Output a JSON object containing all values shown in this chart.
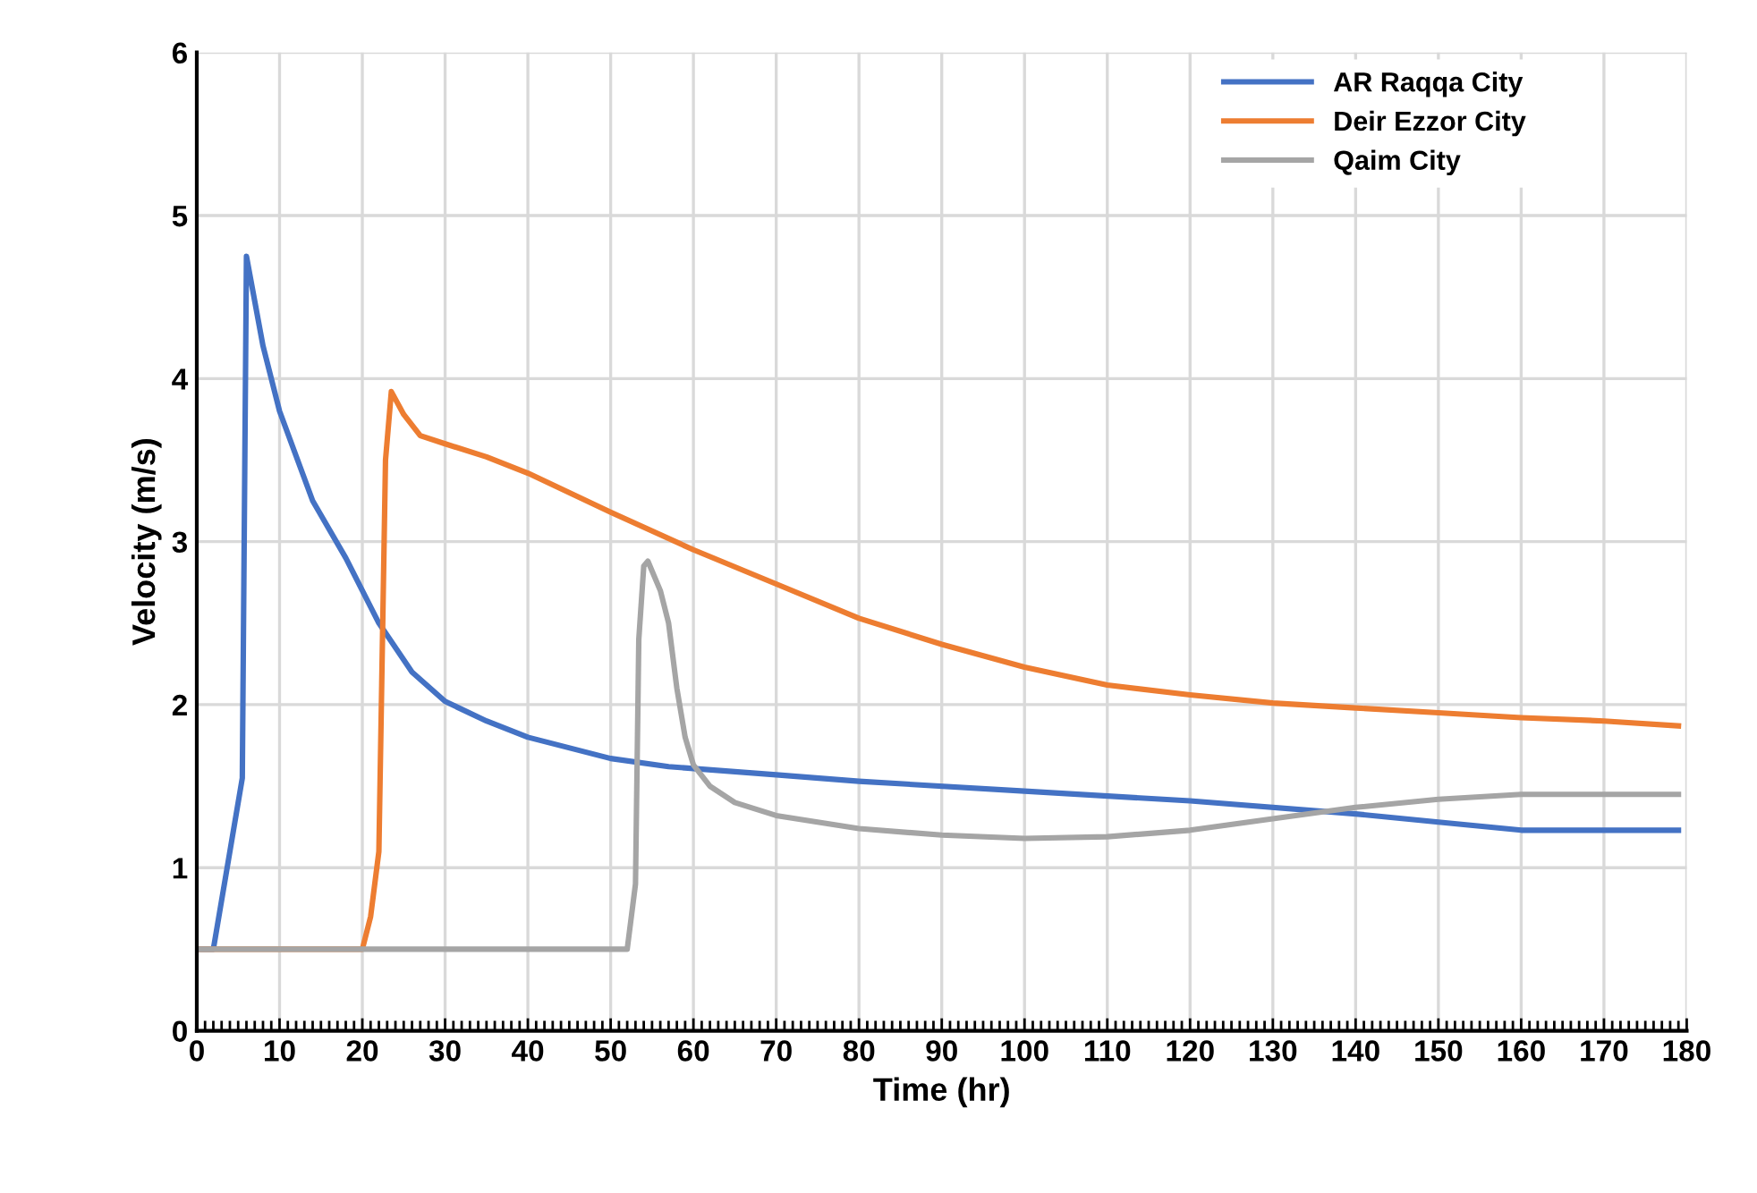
{
  "chart_data": {
    "type": "line",
    "xlabel": "Time (hr)",
    "ylabel": "Velocity (m/s)",
    "xlim": [
      0,
      180
    ],
    "xticks": [
      0,
      10,
      20,
      30,
      40,
      50,
      60,
      70,
      80,
      90,
      100,
      110,
      120,
      130,
      140,
      150,
      160,
      170,
      180
    ],
    "ylim": [
      0,
      6
    ],
    "yticks": [
      0,
      1,
      2,
      3,
      4,
      5,
      6
    ],
    "grid": true,
    "legend": "top right",
    "marker": "none",
    "line_style": "solid",
    "series": [
      {
        "name": "AR Raqqa City",
        "color": "#4472c4",
        "x": [
          0,
          2,
          5.5,
          6,
          8,
          10,
          14,
          18,
          22,
          26,
          30,
          35,
          40,
          50,
          57,
          70,
          80,
          100,
          120,
          140,
          150,
          160,
          170,
          179
        ],
        "values": [
          0.5,
          0.5,
          1.55,
          4.75,
          4.2,
          3.8,
          3.25,
          2.9,
          2.5,
          2.2,
          2.02,
          1.9,
          1.8,
          1.67,
          1.62,
          1.57,
          1.53,
          1.47,
          1.41,
          1.33,
          1.28,
          1.23,
          1.23,
          1.23
        ]
      },
      {
        "name": "Deir Ezzor City",
        "color": "#ed7d31",
        "x": [
          0,
          20,
          21,
          22,
          22.3,
          22.8,
          23.5,
          25,
          27,
          30,
          35,
          40,
          50,
          60,
          70,
          80,
          90,
          100,
          110,
          120,
          130,
          140,
          150,
          160,
          170,
          179
        ],
        "values": [
          0.5,
          0.5,
          0.7,
          1.1,
          2.0,
          3.5,
          3.92,
          3.78,
          3.65,
          3.6,
          3.52,
          3.42,
          3.18,
          2.95,
          2.74,
          2.53,
          2.37,
          2.23,
          2.12,
          2.06,
          2.01,
          1.98,
          1.95,
          1.92,
          1.9,
          1.87
        ]
      },
      {
        "name": "Qaim City",
        "color": "#a5a5a5",
        "x": [
          0,
          52,
          53,
          53.4,
          54,
          54.5,
          56,
          57,
          58,
          59,
          60,
          62,
          65,
          70,
          80,
          90,
          100,
          110,
          120,
          130,
          140,
          150,
          160,
          170,
          179
        ],
        "values": [
          0.5,
          0.5,
          0.9,
          2.4,
          2.85,
          2.88,
          2.7,
          2.5,
          2.1,
          1.8,
          1.63,
          1.5,
          1.4,
          1.32,
          1.24,
          1.2,
          1.18,
          1.19,
          1.23,
          1.3,
          1.37,
          1.42,
          1.45,
          1.45,
          1.45
        ]
      }
    ]
  }
}
